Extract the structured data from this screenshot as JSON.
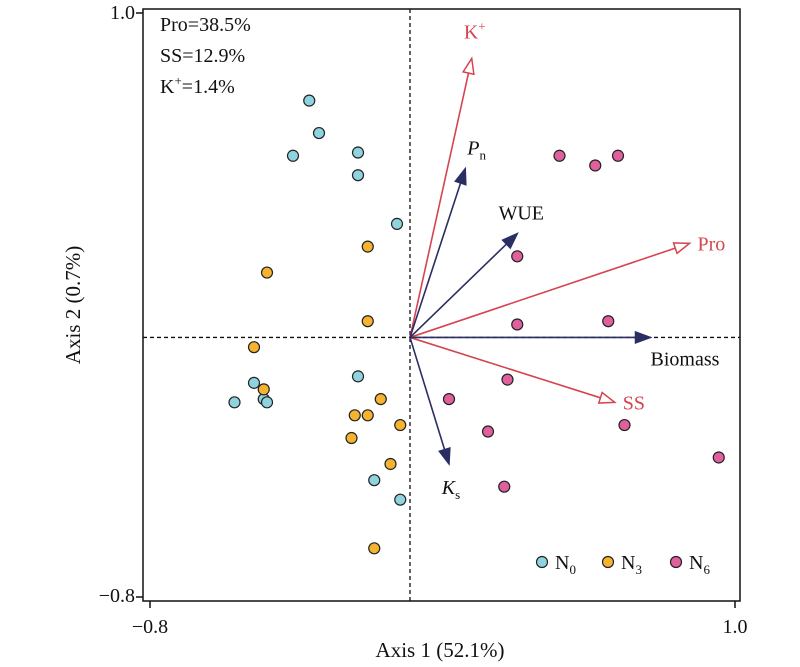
{
  "chart_data": {
    "type": "scatter",
    "xlabel": "Axis 1 (52.1%)",
    "ylabel": "Axis 2 (0.7%)",
    "xlim": [
      -0.8,
      1.0
    ],
    "ylim": [
      -0.8,
      1.0
    ],
    "x_tick_labels": [
      "−0.8",
      "1.0"
    ],
    "y_tick_labels": [
      "1.0",
      "−0.8"
    ],
    "stats": [
      "Pro=38.5%",
      "SS=12.9%"
    ],
    "stat_k": {
      "base": "K",
      "sup": "+",
      "rest": "=1.4%"
    },
    "colors": {
      "N0": "#8fd3e0",
      "N3": "#f5b330",
      "N6": "#e0609e",
      "response": "#d5454f",
      "explanatory": "#2b2e63"
    },
    "response_arrows": [
      {
        "name": "Pro",
        "x": 0.86,
        "y": 0.29
      },
      {
        "name": "SS",
        "x": 0.63,
        "y": -0.2
      },
      {
        "name": "K⁺",
        "base": "K",
        "sup": "+",
        "x": 0.19,
        "y": 0.86
      }
    ],
    "explanatory_arrows": [
      {
        "name": "Biomass",
        "x": 0.74,
        "y": 0.0
      },
      {
        "name": "WUE",
        "x": 0.33,
        "y": 0.32
      },
      {
        "name": "Pn",
        "base": "P",
        "sub": "n",
        "x": 0.17,
        "y": 0.52
      },
      {
        "name": "Ks",
        "base": "K",
        "sub": "s",
        "x": 0.12,
        "y": -0.39
      }
    ],
    "series": [
      {
        "name": "N0",
        "label_base": "N",
        "label_sub": "0",
        "points": [
          [
            -0.31,
            0.73
          ],
          [
            -0.28,
            0.63
          ],
          [
            -0.36,
            0.56
          ],
          [
            -0.16,
            0.57
          ],
          [
            -0.16,
            0.5
          ],
          [
            -0.04,
            0.35
          ],
          [
            -0.48,
            -0.14
          ],
          [
            -0.45,
            -0.19
          ],
          [
            -0.54,
            -0.2
          ],
          [
            -0.44,
            -0.2
          ],
          [
            -0.16,
            -0.12
          ],
          [
            -0.11,
            -0.44
          ],
          [
            -0.03,
            -0.5
          ]
        ]
      },
      {
        "name": "N3",
        "label_base": "N",
        "label_sub": "3",
        "points": [
          [
            -0.13,
            0.28
          ],
          [
            -0.44,
            0.2
          ],
          [
            -0.13,
            0.05
          ],
          [
            -0.48,
            -0.03
          ],
          [
            -0.45,
            -0.16
          ],
          [
            -0.09,
            -0.19
          ],
          [
            -0.17,
            -0.24
          ],
          [
            -0.13,
            -0.24
          ],
          [
            -0.03,
            -0.27
          ],
          [
            -0.18,
            -0.31
          ],
          [
            -0.06,
            -0.39
          ],
          [
            -0.11,
            -0.65
          ]
        ]
      },
      {
        "name": "N6",
        "label_base": "N",
        "label_sub": "6",
        "points": [
          [
            0.46,
            0.56
          ],
          [
            0.57,
            0.53
          ],
          [
            0.64,
            0.56
          ],
          [
            0.33,
            0.25
          ],
          [
            0.33,
            0.04
          ],
          [
            0.61,
            0.05
          ],
          [
            0.3,
            -0.13
          ],
          [
            0.12,
            -0.19
          ],
          [
            0.24,
            -0.29
          ],
          [
            0.66,
            -0.27
          ],
          [
            0.29,
            -0.46
          ],
          [
            0.95,
            -0.37
          ]
        ]
      }
    ]
  }
}
